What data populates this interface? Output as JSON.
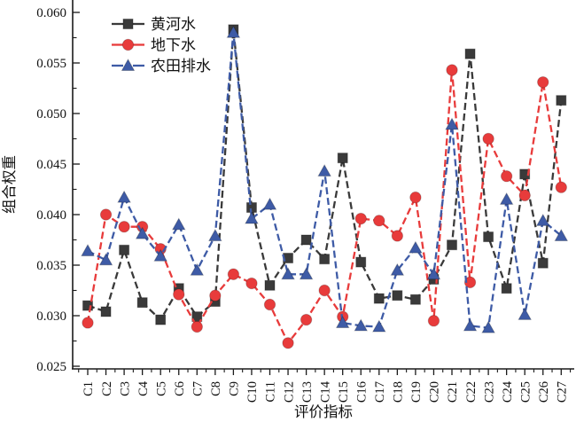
{
  "chart_data": {
    "type": "line",
    "title": "",
    "xlabel": "评价指标",
    "ylabel": "组合权重",
    "ylim": [
      0.025,
      0.06
    ],
    "y_tick_step": 0.005,
    "y_tick_labels": [
      "0.025",
      "0.030",
      "0.035",
      "0.040",
      "0.045",
      "0.050",
      "0.055",
      "0.060"
    ],
    "categories": [
      "C1",
      "C2",
      "C3",
      "C4",
      "C5",
      "C6",
      "C7",
      "C8",
      "C9",
      "C10",
      "C11",
      "C12",
      "C13",
      "C14",
      "C15",
      "C16",
      "C17",
      "C18",
      "C19",
      "C20",
      "C21",
      "C22",
      "C23",
      "C24",
      "C25",
      "C26",
      "C27"
    ],
    "grid": false,
    "legend_position": "top-left-inside",
    "series": [
      {
        "id": "yellow-river-water",
        "name": "黄河水",
        "marker": "square",
        "color": "#3a3a3a",
        "values": [
          0.031,
          0.0304,
          0.0365,
          0.0313,
          0.0296,
          0.0327,
          0.0299,
          0.0314,
          0.0583,
          0.0407,
          0.033,
          0.0357,
          0.0375,
          0.0356,
          0.0456,
          0.0353,
          0.0317,
          0.032,
          0.0316,
          0.0336,
          0.037,
          0.0559,
          0.0378,
          0.0327,
          0.044,
          0.0352,
          0.0513
        ]
      },
      {
        "id": "groundwater",
        "name": "地下水",
        "marker": "circle",
        "color": "#e83b3b",
        "values": [
          0.0293,
          0.04,
          0.0388,
          0.0388,
          0.0366,
          0.0321,
          0.0289,
          0.032,
          0.0341,
          0.0332,
          0.0311,
          0.0273,
          0.0296,
          0.0325,
          0.0299,
          0.0396,
          0.0394,
          0.0379,
          0.0417,
          0.0295,
          0.0543,
          0.0333,
          0.0475,
          0.0438,
          0.0419,
          0.0531,
          0.0427
        ]
      },
      {
        "id": "farmland-drainage",
        "name": "农田排水",
        "marker": "triangle",
        "color": "#3e5ba6",
        "values": [
          0.0364,
          0.0355,
          0.0417,
          0.0381,
          0.0359,
          0.039,
          0.0345,
          0.0379,
          0.058,
          0.0396,
          0.041,
          0.0341,
          0.0341,
          0.0443,
          0.0293,
          0.029,
          0.0289,
          0.0345,
          0.0367,
          0.0341,
          0.0489,
          0.029,
          0.0288,
          0.0415,
          0.0301,
          0.0394,
          0.0379
        ]
      }
    ]
  }
}
